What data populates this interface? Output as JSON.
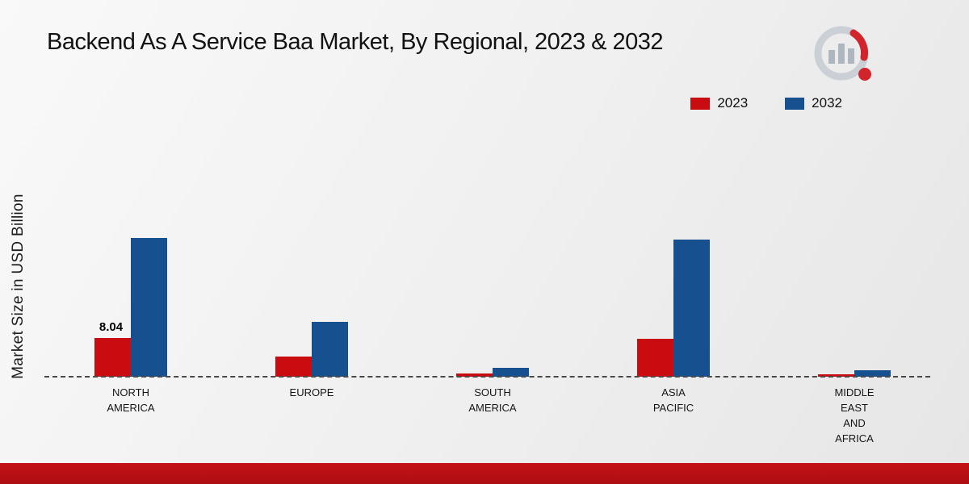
{
  "page": {
    "title": "Backend As A Service Baa Market, By Regional, 2023 & 2032"
  },
  "ylabel": "Market Size in USD Billion",
  "legend": [
    {
      "label": "2023",
      "color": "#c90c10"
    },
    {
      "label": "2032",
      "color": "#17508f"
    }
  ],
  "colors": {
    "footer_band": "#b50f16",
    "baseline": "#4a4a4a",
    "background": "#efefef"
  },
  "chart_data": {
    "type": "bar",
    "title": "Backend As A Service Baa Market, By Regional, 2023 & 2032",
    "ylabel": "Market Size in USD Billion",
    "legend_position": "top-right",
    "grid": false,
    "baseline_style": "dashed",
    "ylim": [
      0,
      60
    ],
    "categories": [
      "NORTH AMERICA",
      "EUROPE",
      "SOUTH AMERICA",
      "ASIA PACIFIC",
      "MIDDLE EAST AND AFRICA"
    ],
    "category_display": [
      "NORTH\nAMERICA",
      "EUROPE",
      "SOUTH\nAMERICA",
      "ASIA\nPACIFIC",
      "MIDDLE\nEAST\nAND\nAFRICA"
    ],
    "series": [
      {
        "name": "2023",
        "color": "#c90c10",
        "values": [
          8.04,
          4.2,
          0.7,
          7.9,
          0.5
        ]
      },
      {
        "name": "2032",
        "color": "#17508f",
        "values": [
          28.9,
          11.5,
          1.8,
          28.6,
          1.3
        ]
      }
    ],
    "bar_labels": [
      {
        "category_index": 0,
        "series_index": 0,
        "text": "8.04"
      }
    ]
  }
}
